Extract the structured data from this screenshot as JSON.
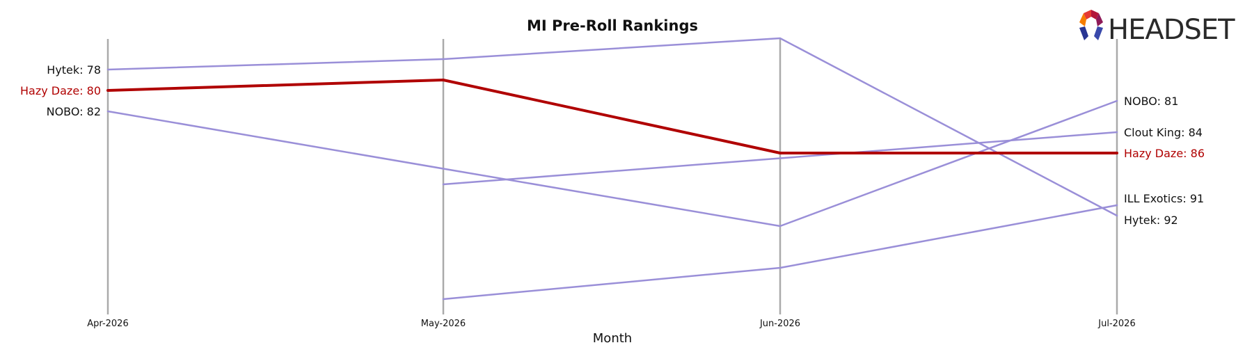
{
  "logo": {
    "text": "HEADSET",
    "icon": "headset-logo-icon"
  },
  "colors": {
    "highlight": "#b00000",
    "other": "#9a8fd8",
    "axis": "#aaaaaa",
    "text": "#111111"
  },
  "chart_data": {
    "type": "line",
    "title": "MI Pre-Roll Rankings",
    "xlabel": "Month",
    "ylabel": "",
    "y_inverted": true,
    "ylim": [
      76,
      100
    ],
    "x": [
      "Apr-2026",
      "May-2026",
      "Jun-2026",
      "Jul-2026"
    ],
    "highlight": "Hazy Daze",
    "series": [
      {
        "name": "Hazy Daze",
        "values": [
          80,
          79,
          86,
          86
        ],
        "start_label": "Hazy Daze: 80",
        "end_label": "Hazy Daze: 86"
      },
      {
        "name": "Hytek",
        "values": [
          78,
          77,
          75,
          92
        ],
        "start_label": "Hytek: 78",
        "end_label": "Hytek: 92"
      },
      {
        "name": "NOBO",
        "values": [
          82,
          87.5,
          93,
          81
        ],
        "start_label": "NOBO: 82",
        "end_label": "NOBO: 81"
      },
      {
        "name": "Clout King",
        "values": [
          null,
          89,
          86.5,
          84
        ],
        "start_label": "",
        "end_label": "Clout King: 84"
      },
      {
        "name": "ILL Exotics",
        "values": [
          null,
          100,
          97,
          91
        ],
        "start_label": "",
        "end_label": "ILL Exotics: 91"
      }
    ]
  }
}
